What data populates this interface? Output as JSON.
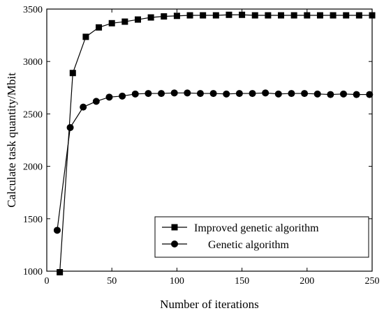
{
  "chart_data": {
    "type": "line",
    "title": "",
    "xlabel": "Number of iterations",
    "ylabel": "Calculate task quantity/Mbit",
    "xlim": [
      0,
      250
    ],
    "ylim": [
      1000,
      3500
    ],
    "xticks": [
      0,
      50,
      100,
      150,
      200,
      250
    ],
    "yticks": [
      1000,
      1500,
      2000,
      2500,
      3000,
      3500
    ],
    "grid": false,
    "legend_position": "bottom-right",
    "series": [
      {
        "name": "Improved genetic algorithm",
        "marker": "square",
        "color": "#000000",
        "x": [
          10,
          20,
          30,
          40,
          50,
          60,
          70,
          80,
          90,
          100,
          110,
          120,
          130,
          140,
          150,
          160,
          170,
          180,
          190,
          200,
          210,
          220,
          230,
          240,
          250
        ],
        "y": [
          990,
          2890,
          3235,
          3325,
          3365,
          3380,
          3400,
          3420,
          3430,
          3435,
          3440,
          3440,
          3440,
          3445,
          3445,
          3440,
          3440,
          3440,
          3440,
          3440,
          3440,
          3440,
          3440,
          3440,
          3440
        ]
      },
      {
        "name": "Genetic algorithm",
        "marker": "circle",
        "color": "#000000",
        "x": [
          8,
          18,
          28,
          38,
          48,
          58,
          68,
          78,
          88,
          98,
          108,
          118,
          128,
          138,
          148,
          158,
          168,
          178,
          188,
          198,
          208,
          218,
          228,
          238,
          248
        ],
        "y": [
          1390,
          2370,
          2565,
          2620,
          2660,
          2670,
          2690,
          2695,
          2695,
          2700,
          2700,
          2695,
          2695,
          2690,
          2695,
          2695,
          2700,
          2690,
          2695,
          2695,
          2690,
          2685,
          2690,
          2685,
          2685
        ]
      }
    ]
  }
}
